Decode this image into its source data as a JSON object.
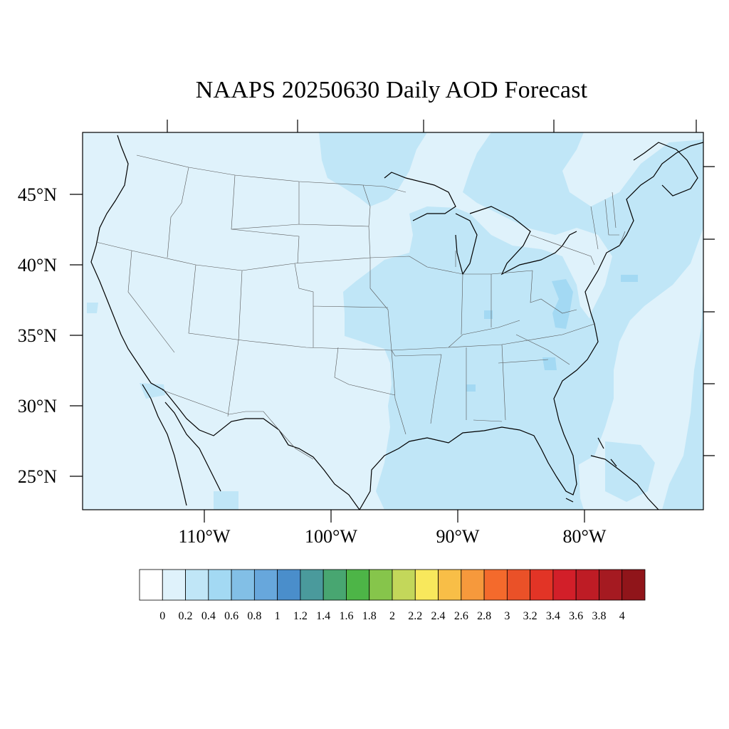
{
  "title": "NAAPS 20250630 Daily AOD Forecast",
  "colors": {
    "ocean_background": "#dff2fb",
    "light_blue": "#c0e6f7",
    "mid_blue": "#a3d9f3",
    "coastline": "#000000",
    "state_borders": "#555555"
  },
  "map": {
    "projection": "equidistant cylindrical",
    "lon_range": [
      -118,
      -70
    ],
    "lat_range": [
      22.5,
      49.5
    ]
  },
  "lat_labels": [
    "45°N",
    "40°N",
    "35°N",
    "30°N",
    "25°N"
  ],
  "lon_labels": [
    "110°W",
    "100°W",
    "90°W",
    "80°W"
  ],
  "colorbar": {
    "labels": [
      "0",
      "0.2",
      "0.4",
      "0.6",
      "0.8",
      "1",
      "1.2",
      "1.4",
      "1.6",
      "1.8",
      "2",
      "2.2",
      "2.4",
      "2.6",
      "2.8",
      "3",
      "3.2",
      "3.4",
      "3.6",
      "3.8",
      "4"
    ],
    "colors": [
      "#ffffff",
      "#dff2fb",
      "#c0e6f7",
      "#a3d9f3",
      "#82bfe6",
      "#67a7dc",
      "#4a8ecb",
      "#4a9a9c",
      "#48a671",
      "#4db547",
      "#86c54b",
      "#c3d75a",
      "#f8e85c",
      "#f8be47",
      "#f6993c",
      "#f46a2c",
      "#ea5128",
      "#e23426",
      "#d21f29",
      "#be1c25",
      "#a51a21",
      "#90151a"
    ]
  }
}
